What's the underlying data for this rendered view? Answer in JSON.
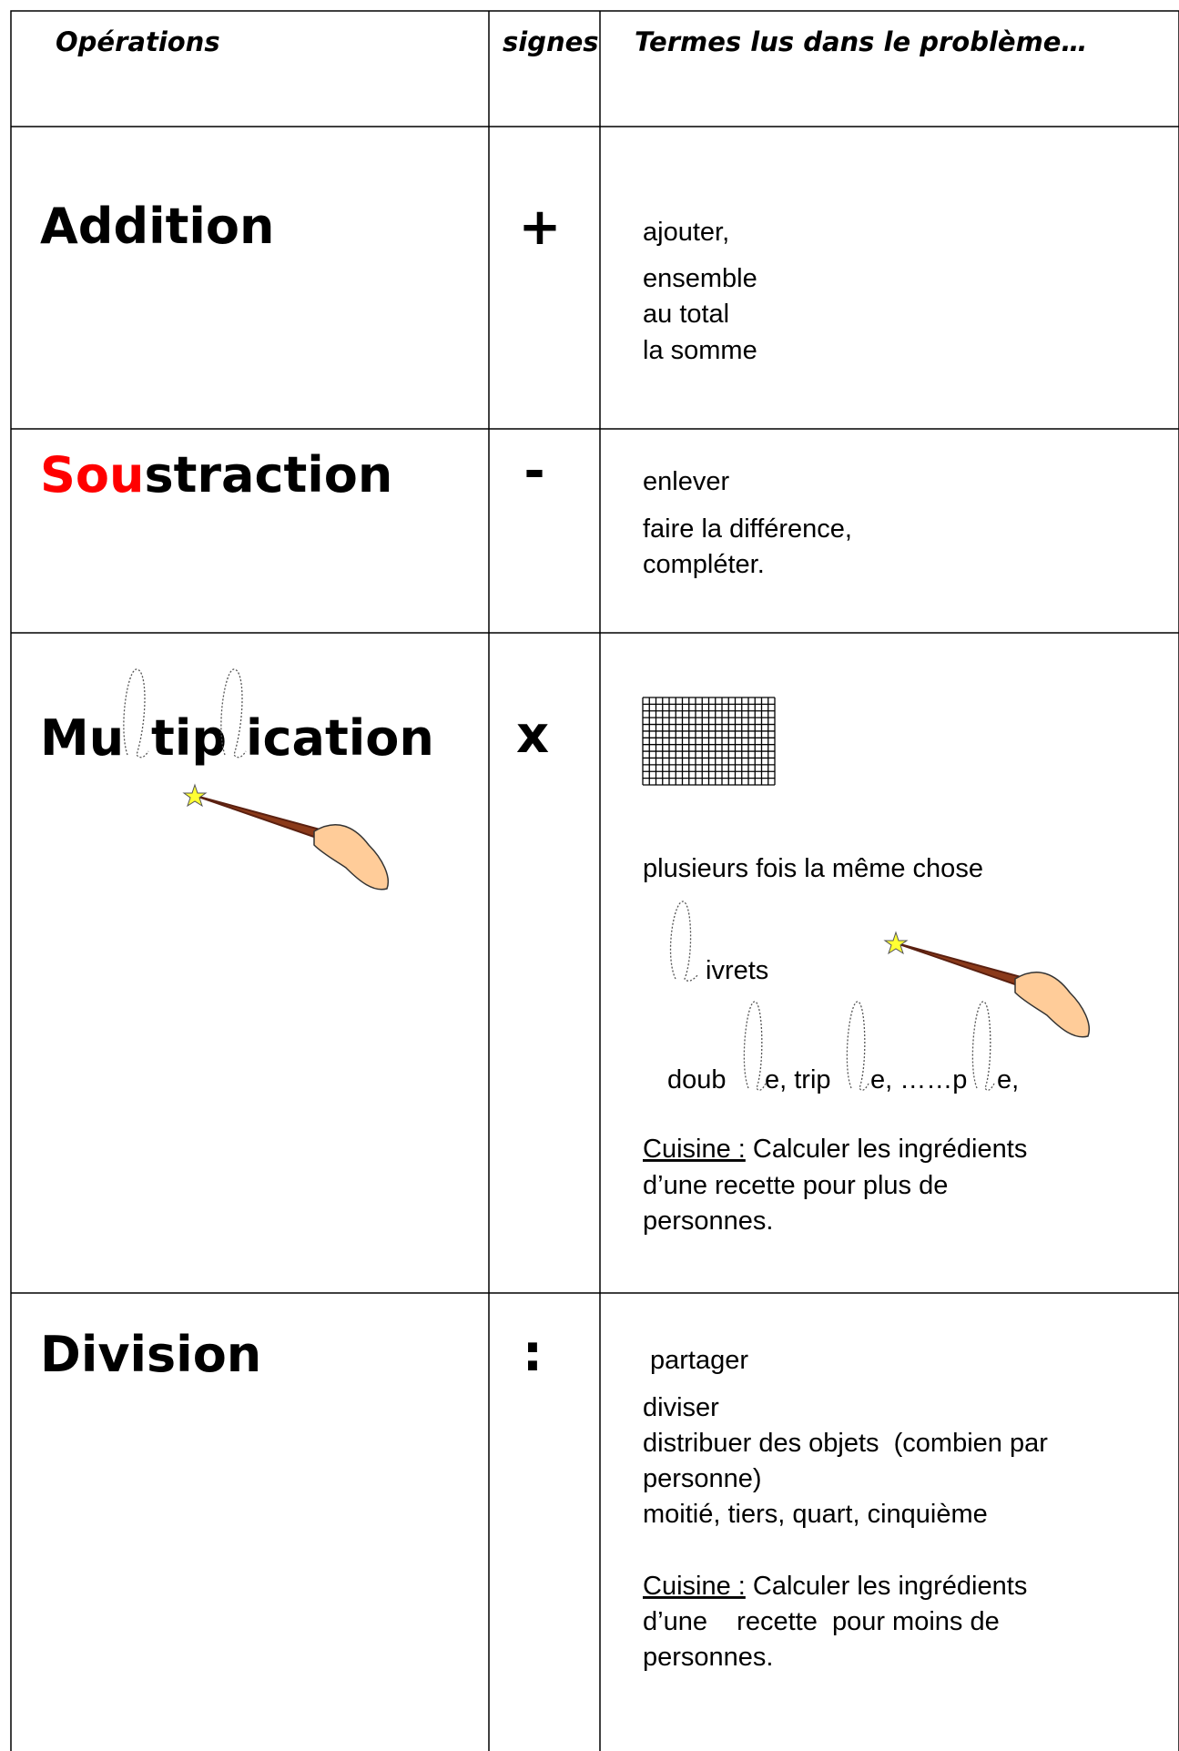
{
  "header": {
    "operations": "Opérations",
    "signs": "signes",
    "terms": "Termes lus dans le problème…"
  },
  "rows": [
    {
      "operation": "Addition",
      "sign": "+",
      "terms": [
        "ajouter,",
        "ensemble",
        "au total",
        "la somme"
      ]
    },
    {
      "operation": [
        "Sou",
        "straction"
      ],
      "sign": "-",
      "terms": [
        "enlever",
        "faire la différence,",
        "compléter."
      ]
    },
    {
      "operation": [
        "Mu",
        "tip",
        "ication"
      ],
      "sign": "x",
      "terms": [
        "plusieurs fois la même chose",
        "ivrets",
        [
          "doub",
          "e, trip",
          "e, ……p",
          "e,"
        ]
      ],
      "cuisine": {
        "label": "Cuisine :",
        "lines": [
          "Calculer les ingrédients",
          "d’une recette pour plus de",
          "personnes."
        ]
      }
    },
    {
      "operation": "Division",
      "sign": ":",
      "terms": [
        "partager",
        "diviser",
        "distribuer des objets  (combien par",
        "personne)",
        "moitié, tiers, quart, cinquième"
      ],
      "cuisine": {
        "label": "Cuisine :",
        "lines": [
          "Calculer les ingrédients",
          "d’une    recette  pour moins de",
          "personnes."
        ]
      }
    }
  ]
}
